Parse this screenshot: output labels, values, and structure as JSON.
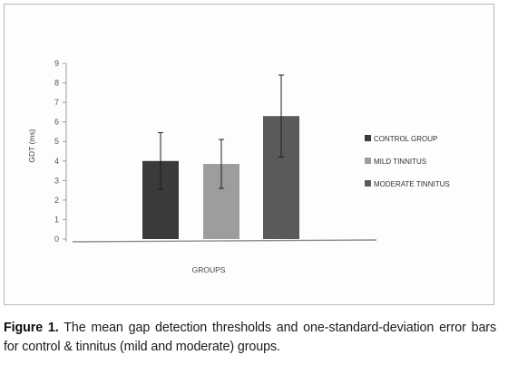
{
  "chart_data": {
    "type": "bar",
    "xlabel": "GROUPS",
    "ylabel": "GDT (ms)",
    "ylim": [
      0,
      9
    ],
    "yticks": [
      "0",
      "1",
      "2",
      "3",
      "4",
      "5",
      "6",
      "7",
      "8",
      "9"
    ],
    "grid": false,
    "legend_position": "right",
    "series": [
      {
        "name": "CONTROL GROUP",
        "value": 4.0,
        "error": 1.45,
        "color": "#3a3a3a"
      },
      {
        "name": "MILD TINNITUS",
        "value": 3.85,
        "error": 1.25,
        "color": "#9d9d9d"
      },
      {
        "name": "MODERATE TINNITUS",
        "value": 6.3,
        "error": 2.1,
        "color": "#5a5a5a"
      }
    ]
  },
  "caption": {
    "label": "Figure 1.",
    "text": "The mean gap detection thresholds and one-standard-deviation error bars for control & tinnitus (mild and moderate) groups."
  }
}
